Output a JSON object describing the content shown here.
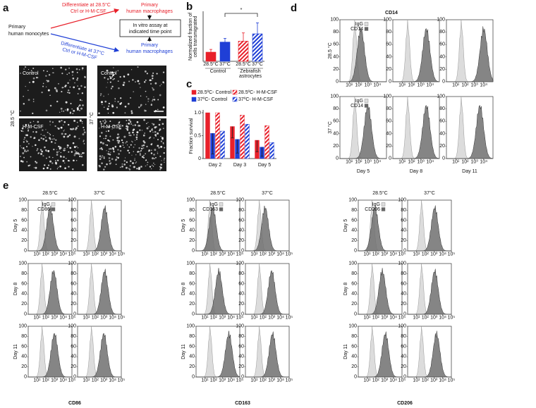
{
  "panel_a": {
    "letter": "a",
    "source": [
      "Primary",
      "human monocytes"
    ],
    "top_arrow": [
      "Differentiate at 28.5°C",
      "Ctrl or H-M-CSF"
    ],
    "top_result": [
      "Primary",
      "human macrophages"
    ],
    "assay": [
      "In vitro assay at",
      "indicated time point"
    ],
    "bottom_arrow": [
      "Differentiate at 37°C",
      "Ctrl or H-M-CSF"
    ],
    "bottom_result": [
      "Primary",
      "human macrophages"
    ],
    "temperatures": [
      "28.5 °C",
      "37 °C"
    ],
    "conditions": [
      "Control",
      "H-M-CSF"
    ]
  },
  "chart_data": [
    {
      "type": "bar",
      "letter": "b",
      "ylabel": [
        "Normalized fraction of",
        "cells transmigrated"
      ],
      "categories": [
        "28.5°C",
        "37°C",
        "28.5°C",
        "37°C"
      ],
      "groups": [
        [
          "Control"
        ],
        [
          "Zebrafish",
          "astrocytes"
        ]
      ],
      "values": [
        1.0,
        2.1,
        2.2,
        3.0
      ],
      "errors": [
        0.3,
        0.4,
        0.9,
        1.2
      ],
      "colors": [
        "#e8202a",
        "#1f3fd6",
        "#e8202a",
        "#1f3fd6"
      ],
      "hatched": [
        false,
        false,
        true,
        true
      ],
      "ylim": [
        0,
        5
      ],
      "significance": "*"
    },
    {
      "type": "grouped_bar",
      "letter": "c",
      "ylabel": "Fraction survival",
      "categories": [
        "Day 2",
        "Day 3",
        "Day 5"
      ],
      "ylim": [
        0,
        1
      ],
      "yticks": [
        0,
        0.5,
        {
          "value": 1,
          "label": "1.0"
        }
      ],
      "series": [
        {
          "name": "28.5ºC- Control",
          "color": "#e8202a",
          "hatched": false,
          "values": [
            1.0,
            0.7,
            0.4
          ],
          "errors": [
            null,
            0.25,
            0.25
          ]
        },
        {
          "name": "37ºC- Control",
          "color": "#1f3fd6",
          "hatched": false,
          "values": [
            0.55,
            0.42,
            0.25
          ],
          "errors": [
            0.45,
            0.3,
            0.2
          ]
        },
        {
          "name": "28.5ºC- H-M-CSF",
          "color": "#e8202a",
          "hatched": true,
          "values": [
            1.0,
            0.95,
            0.72
          ],
          "errors": [
            null,
            null,
            null
          ]
        },
        {
          "name": "37ºC- H-M-CSF",
          "color": "#1f3fd6",
          "hatched": true,
          "values": [
            0.6,
            0.75,
            0.35
          ],
          "errors": [
            null,
            null,
            null
          ]
        }
      ]
    }
  ],
  "panel_d": {
    "letter": "d",
    "title": "CD14",
    "rows": [
      "28.5 °C",
      "37 °C"
    ],
    "columns": [
      "Day 5",
      "Day 8",
      "Day 11"
    ],
    "legend": [
      "IgG",
      "CD14"
    ],
    "ylim": [
      0,
      100
    ],
    "yticks": [
      0,
      20,
      40,
      60,
      80,
      100
    ],
    "xlim": [
      1,
      100000
    ],
    "xticks": [
      {
        "value": 10,
        "label": "10¹"
      },
      {
        "value": 100,
        "label": "10²"
      },
      {
        "value": 1000,
        "label": "10³"
      },
      {
        "value": 10000,
        "label": "10⁴"
      }
    ]
  },
  "panel_e": {
    "letter": "e",
    "temperatures": [
      "28.5°C",
      "37°C"
    ],
    "days": [
      "Day 5",
      "Day 8",
      "Day 11"
    ],
    "groups": [
      {
        "marker": "CD86",
        "legend": [
          "IgG",
          "CD86"
        ]
      },
      {
        "marker": "CD163",
        "legend": [
          "IgG",
          "CD163"
        ]
      },
      {
        "marker": "CD206",
        "legend": [
          "IgG",
          "CD206"
        ]
      }
    ],
    "ylim": [
      0,
      100
    ],
    "yticks": [
      0,
      20,
      40,
      60,
      80,
      100
    ],
    "xlim": [
      1,
      100000
    ],
    "xticks": [
      {
        "value": 10,
        "label": "10¹"
      },
      {
        "value": 100,
        "label": "10²"
      },
      {
        "value": 1000,
        "label": "10³"
      },
      {
        "value": 10000,
        "label": "10⁴"
      },
      {
        "value": 100000,
        "label": "10⁵"
      }
    ]
  }
}
